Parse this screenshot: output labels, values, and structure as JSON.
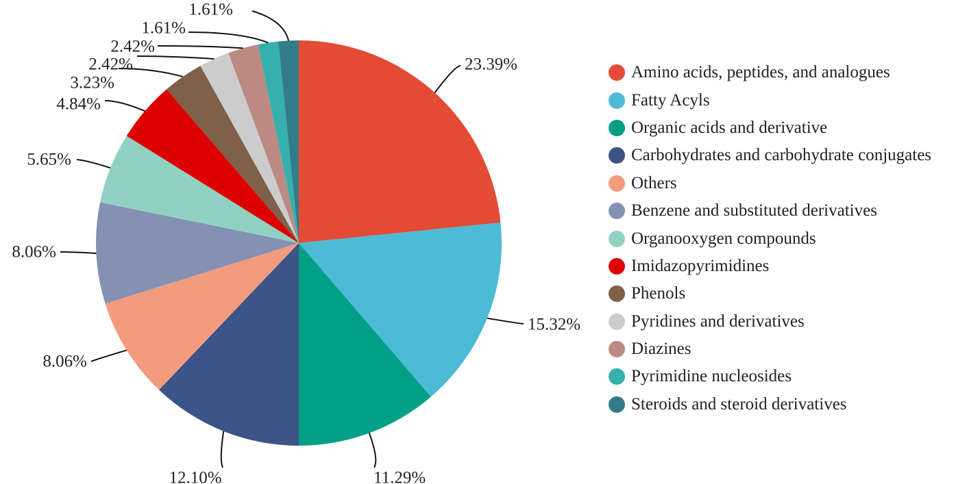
{
  "chart_data": {
    "type": "pie",
    "title": "",
    "legend_position": "right",
    "slices": [
      {
        "label": "Amino acids, peptides, and analogues",
        "value": 23.39,
        "value_label": "23.39%",
        "color": "#E34B35"
      },
      {
        "label": "Fatty Acyls",
        "value": 15.32,
        "value_label": "15.32%",
        "color": "#4DBBD6"
      },
      {
        "label": "Organic acids and derivative",
        "value": 11.29,
        "value_label": "11.29%",
        "color": "#00A087"
      },
      {
        "label": "Carbohydrates and carbohydrate conjugates",
        "value": 12.1,
        "value_label": "12.10%",
        "color": "#3C5488"
      },
      {
        "label": "Others",
        "value": 8.06,
        "value_label": "8.06%",
        "color": "#F39B7F"
      },
      {
        "label": "Benzene and substituted derivatives",
        "value": 8.06,
        "value_label": "8.06%",
        "color": "#8491B4"
      },
      {
        "label": "Organooxygen compounds",
        "value": 5.65,
        "value_label": "5.65%",
        "color": "#91D1C2"
      },
      {
        "label": "Imidazopyrimidines",
        "value": 4.84,
        "value_label": "4.84%",
        "color": "#DC0000"
      },
      {
        "label": "Phenols",
        "value": 3.23,
        "value_label": "3.23%",
        "color": "#7E6148"
      },
      {
        "label": "Pyridines and derivatives",
        "value": 2.42,
        "value_label": "2.42%",
        "color": "#CCCCCC"
      },
      {
        "label": "Diazines",
        "value": 2.42,
        "value_label": "2.42%",
        "color": "#BC8A82"
      },
      {
        "label": "Pyrimidine nucleosides",
        "value": 1.61,
        "value_label": "1.61%",
        "color": "#35B0AC"
      },
      {
        "label": "Steroids and steroid derivatives",
        "value": 1.61,
        "value_label": "1.61%",
        "color": "#337B88"
      }
    ]
  }
}
